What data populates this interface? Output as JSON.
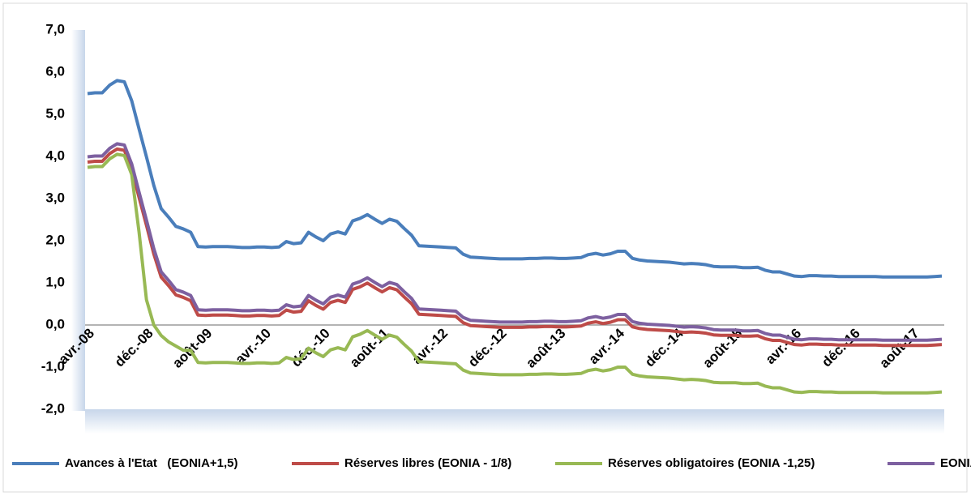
{
  "chart_data": {
    "type": "line",
    "categories": [
      "avr.-08",
      null,
      null,
      null,
      null,
      null,
      null,
      null,
      "déc.-08",
      null,
      null,
      null,
      null,
      null,
      null,
      null,
      "août-09",
      null,
      null,
      null,
      null,
      null,
      null,
      null,
      "avr.-10",
      null,
      null,
      null,
      null,
      null,
      null,
      null,
      "déc.-10",
      null,
      null,
      null,
      null,
      null,
      null,
      null,
      "août-11",
      null,
      null,
      null,
      null,
      null,
      null,
      null,
      "avr.-12",
      null,
      null,
      null,
      null,
      null,
      null,
      null,
      "déc.-12",
      null,
      null,
      null,
      null,
      null,
      null,
      null,
      "août-13",
      null,
      null,
      null,
      null,
      null,
      null,
      null,
      "avr.-14",
      null,
      null,
      null,
      null,
      null,
      null,
      null,
      "déc.-14",
      null,
      null,
      null,
      null,
      null,
      null,
      null,
      "août-15",
      null,
      null,
      null,
      null,
      null,
      null,
      null,
      "avr.-16",
      null,
      null,
      null,
      null,
      null,
      null,
      null,
      "déc.-16",
      null,
      null,
      null,
      null,
      null,
      null,
      null,
      "août-17",
      null,
      null,
      null,
      null
    ],
    "series": [
      {
        "name": "Avances à l'Etat   (EONIA+1,5)",
        "color": "#4a7ebb",
        "values": [
          5.49,
          5.51,
          5.51,
          5.69,
          5.8,
          5.77,
          5.32,
          4.65,
          3.99,
          3.31,
          2.76,
          2.56,
          2.34,
          2.28,
          2.2,
          1.86,
          1.85,
          1.86,
          1.86,
          1.86,
          1.85,
          1.84,
          1.84,
          1.85,
          1.85,
          1.84,
          1.85,
          1.98,
          1.93,
          1.95,
          2.2,
          2.09,
          2.0,
          2.16,
          2.21,
          2.16,
          2.47,
          2.53,
          2.62,
          2.51,
          2.41,
          2.51,
          2.46,
          2.29,
          2.13,
          1.88,
          1.87,
          1.86,
          1.85,
          1.84,
          1.83,
          1.68,
          1.61,
          1.6,
          1.59,
          1.58,
          1.57,
          1.57,
          1.57,
          1.57,
          1.58,
          1.58,
          1.59,
          1.59,
          1.58,
          1.58,
          1.59,
          1.6,
          1.67,
          1.7,
          1.66,
          1.69,
          1.75,
          1.75,
          1.58,
          1.54,
          1.52,
          1.51,
          1.5,
          1.49,
          1.47,
          1.45,
          1.46,
          1.45,
          1.43,
          1.39,
          1.38,
          1.38,
          1.38,
          1.36,
          1.36,
          1.37,
          1.3,
          1.26,
          1.26,
          1.21,
          1.16,
          1.15,
          1.17,
          1.17,
          1.16,
          1.16,
          1.15,
          1.15,
          1.15,
          1.15,
          1.15,
          1.15,
          1.14,
          1.14,
          1.14,
          1.14,
          1.14,
          1.14,
          1.14,
          1.15,
          1.16
        ]
      },
      {
        "name": "Réserves libres (EONIA - 1/8)",
        "color": "#be4b48",
        "values": [
          3.865,
          3.885,
          3.885,
          4.065,
          4.175,
          4.145,
          3.695,
          3.025,
          2.365,
          1.685,
          1.135,
          0.935,
          0.715,
          0.655,
          0.575,
          0.235,
          0.225,
          0.235,
          0.235,
          0.235,
          0.225,
          0.215,
          0.215,
          0.225,
          0.225,
          0.215,
          0.225,
          0.355,
          0.305,
          0.325,
          0.575,
          0.465,
          0.375,
          0.535,
          0.585,
          0.535,
          0.845,
          0.905,
          0.995,
          0.885,
          0.785,
          0.885,
          0.835,
          0.665,
          0.505,
          0.255,
          0.245,
          0.235,
          0.225,
          0.215,
          0.205,
          0.055,
          -0.015,
          -0.025,
          -0.035,
          -0.045,
          -0.055,
          -0.055,
          -0.055,
          -0.055,
          -0.045,
          -0.045,
          -0.035,
          -0.035,
          -0.045,
          -0.045,
          -0.035,
          -0.025,
          0.045,
          0.075,
          0.035,
          0.065,
          0.125,
          0.125,
          -0.045,
          -0.085,
          -0.105,
          -0.115,
          -0.125,
          -0.135,
          -0.155,
          -0.175,
          -0.165,
          -0.175,
          -0.195,
          -0.235,
          -0.245,
          -0.245,
          -0.245,
          -0.265,
          -0.265,
          -0.255,
          -0.325,
          -0.365,
          -0.365,
          -0.415,
          -0.465,
          -0.475,
          -0.455,
          -0.455,
          -0.465,
          -0.465,
          -0.475,
          -0.475,
          -0.475,
          -0.475,
          -0.475,
          -0.475,
          -0.485,
          -0.485,
          -0.485,
          -0.485,
          -0.485,
          -0.485,
          -0.485,
          -0.475,
          -0.465
        ]
      },
      {
        "name": "Réserves obligatoires (EONIA -1,25)",
        "color": "#98b954",
        "values": [
          3.74,
          3.76,
          3.76,
          3.94,
          4.05,
          4.02,
          3.57,
          2.2,
          0.6,
          0.0,
          -0.25,
          -0.4,
          -0.5,
          -0.6,
          -0.6,
          -0.89,
          -0.9,
          -0.89,
          -0.89,
          -0.89,
          -0.9,
          -0.91,
          -0.91,
          -0.9,
          -0.9,
          -0.91,
          -0.9,
          -0.77,
          -0.82,
          -0.8,
          -0.55,
          -0.66,
          -0.75,
          -0.59,
          -0.54,
          -0.59,
          -0.28,
          -0.22,
          -0.13,
          -0.24,
          -0.34,
          -0.24,
          -0.29,
          -0.46,
          -0.62,
          -0.87,
          -0.88,
          -0.89,
          -0.9,
          -0.91,
          -0.92,
          -1.07,
          -1.14,
          -1.15,
          -1.16,
          -1.17,
          -1.18,
          -1.18,
          -1.18,
          -1.18,
          -1.17,
          -1.17,
          -1.16,
          -1.16,
          -1.17,
          -1.17,
          -1.16,
          -1.15,
          -1.08,
          -1.05,
          -1.09,
          -1.06,
          -1.0,
          -1.0,
          -1.17,
          -1.21,
          -1.23,
          -1.24,
          -1.25,
          -1.26,
          -1.28,
          -1.3,
          -1.29,
          -1.3,
          -1.32,
          -1.36,
          -1.37,
          -1.37,
          -1.37,
          -1.39,
          -1.39,
          -1.38,
          -1.45,
          -1.49,
          -1.49,
          -1.54,
          -1.59,
          -1.6,
          -1.58,
          -1.58,
          -1.59,
          -1.59,
          -1.6,
          -1.6,
          -1.6,
          -1.6,
          -1.6,
          -1.6,
          -1.61,
          -1.61,
          -1.61,
          -1.61,
          -1.61,
          -1.61,
          -1.61,
          -1.6,
          -1.59
        ]
      },
      {
        "name": "EONIA",
        "color": "#7d60a0",
        "values": [
          3.99,
          4.01,
          4.01,
          4.19,
          4.3,
          4.27,
          3.82,
          3.15,
          2.49,
          1.81,
          1.26,
          1.06,
          0.84,
          0.78,
          0.7,
          0.36,
          0.35,
          0.36,
          0.36,
          0.36,
          0.35,
          0.34,
          0.34,
          0.35,
          0.35,
          0.34,
          0.35,
          0.48,
          0.43,
          0.45,
          0.7,
          0.59,
          0.5,
          0.66,
          0.71,
          0.66,
          0.97,
          1.03,
          1.12,
          1.01,
          0.91,
          1.01,
          0.96,
          0.79,
          0.63,
          0.38,
          0.37,
          0.36,
          0.35,
          0.34,
          0.33,
          0.18,
          0.11,
          0.1,
          0.09,
          0.08,
          0.07,
          0.07,
          0.07,
          0.07,
          0.08,
          0.08,
          0.09,
          0.09,
          0.08,
          0.08,
          0.09,
          0.1,
          0.17,
          0.2,
          0.16,
          0.19,
          0.25,
          0.25,
          0.08,
          0.04,
          0.02,
          0.01,
          0.0,
          -0.01,
          -0.03,
          -0.05,
          -0.04,
          -0.05,
          -0.07,
          -0.11,
          -0.12,
          -0.12,
          -0.12,
          -0.14,
          -0.14,
          -0.13,
          -0.2,
          -0.24,
          -0.24,
          -0.29,
          -0.34,
          -0.35,
          -0.33,
          -0.33,
          -0.34,
          -0.34,
          -0.35,
          -0.35,
          -0.35,
          -0.35,
          -0.35,
          -0.35,
          -0.36,
          -0.36,
          -0.36,
          -0.36,
          -0.36,
          -0.36,
          -0.36,
          -0.35,
          -0.34
        ]
      }
    ],
    "ylim": [
      -2,
      7
    ],
    "yticks": [
      {
        "value": -2,
        "label": "-2,0"
      },
      {
        "value": -1,
        "label": "-1,0"
      },
      {
        "value": 0,
        "label": "0,0"
      },
      {
        "value": 1,
        "label": "1,0"
      },
      {
        "value": 2,
        "label": "2,0"
      },
      {
        "value": 3,
        "label": "3,0"
      },
      {
        "value": 4,
        "label": "4,0"
      },
      {
        "value": 5,
        "label": "5,0"
      },
      {
        "value": 6,
        "label": "6,0"
      },
      {
        "value": 7,
        "label": "7,0"
      }
    ],
    "legend": "bottom"
  }
}
